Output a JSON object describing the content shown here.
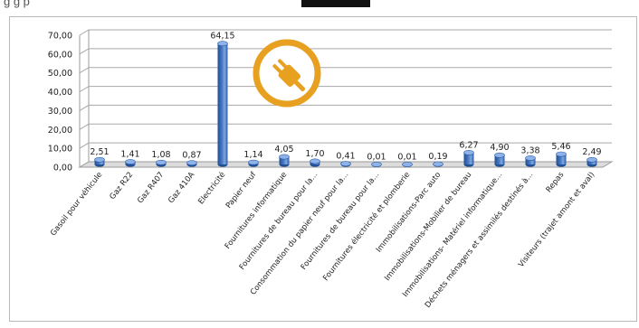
{
  "header": {
    "fragment_text": "g                       g                                                              p"
  },
  "chart_data": {
    "type": "bar",
    "title": "",
    "xlabel": "",
    "ylabel": "",
    "ylim": [
      0,
      70
    ],
    "yticks": [
      "0,00",
      "10,00",
      "20,00",
      "30,00",
      "40,00",
      "50,00",
      "60,00",
      "70,00"
    ],
    "grid": true,
    "legend": "none",
    "bar_style": "3d-cylinder",
    "bar_color": "#4a7bc2",
    "categories": [
      "Gasoil pour véhicule",
      "Gaz R22",
      "Gaz R407",
      "Gaz 410A",
      "Electricité",
      "Papier neuf",
      "Fournitures informatique",
      "Fournitures de bureau pour la...",
      "Consommation du papier neuf pour la...",
      "Fournitures de bureau pour la...",
      "Fournitures électricité et plomberie",
      "Immobilisations-Parc auto",
      "Immobilisations-Mobilier de bureau",
      "Immobilisations- Matériel informatique...",
      "Déchets ménagers et assimilés destinés à...",
      "Repas",
      "Visiteurs (trajet amont et aval)"
    ],
    "values": [
      2.51,
      1.41,
      1.08,
      0.87,
      64.15,
      1.14,
      4.05,
      1.7,
      0.41,
      0.01,
      0.01,
      0.19,
      6.27,
      4.9,
      3.38,
      5.46,
      2.49
    ],
    "data_labels": [
      "2,51",
      "1,41",
      "1,08",
      "0,87",
      "64,15",
      "1,14",
      "4,05",
      "1,70",
      "0,41",
      "0,01",
      "0,01",
      "0,19",
      "6,27",
      "4,90",
      "3,38",
      "5,46",
      "2,49"
    ]
  },
  "icon": {
    "name": "electric-plug-icon",
    "color": "#e8a020"
  }
}
